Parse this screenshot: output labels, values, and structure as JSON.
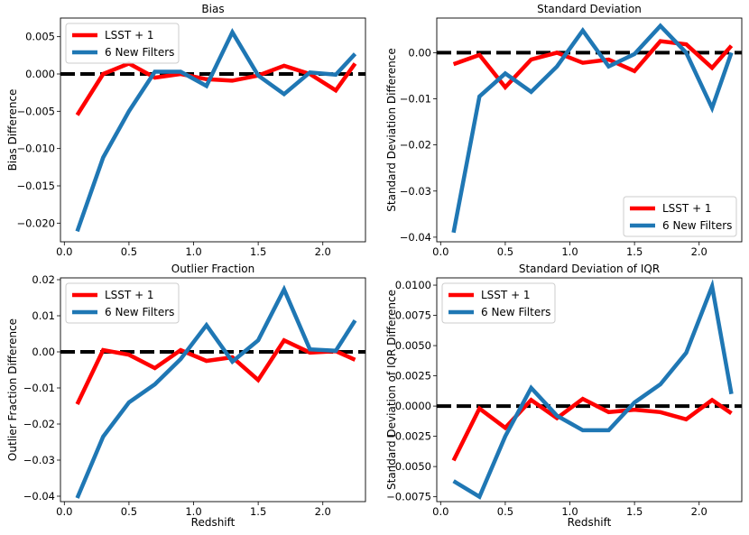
{
  "colors": {
    "lsst": "#ff0000",
    "new6": "#1f77b4",
    "zero": "#000000",
    "axes": "#000000"
  },
  "chart_data": [
    {
      "type": "line",
      "title": "Bias",
      "xlabel": "",
      "ylabel": "Bias Difference",
      "xlim": [
        -0.03,
        2.33
      ],
      "ylim": [
        -0.0225,
        0.0075
      ],
      "xticks": [
        0.0,
        0.5,
        1.0,
        1.5,
        2.0
      ],
      "xtick_labels": [
        "0.0",
        "0.5",
        "1.0",
        "1.5",
        "2.0"
      ],
      "yticks": [
        -0.02,
        -0.015,
        -0.01,
        -0.005,
        0.0,
        0.005
      ],
      "ytick_labels": [
        "−0.020",
        "−0.015",
        "−0.010",
        "−0.005",
        "0.000",
        "0.005"
      ],
      "legend_position": "upper-left",
      "x": [
        0.1,
        0.3,
        0.5,
        0.7,
        0.9,
        1.1,
        1.3,
        1.5,
        1.7,
        1.9,
        2.1,
        2.25
      ],
      "series": [
        {
          "name": "LSST + 1",
          "color_key": "lsst",
          "values": [
            -0.0055,
            0.0,
            0.0014,
            -0.0005,
            0.0,
            -0.0007,
            -0.0009,
            -0.0002,
            0.0011,
            0.0,
            -0.0022,
            0.0014
          ]
        },
        {
          "name": "6 New Filters",
          "color_key": "new6",
          "values": [
            -0.0211,
            -0.0112,
            -0.005,
            0.0003,
            0.0003,
            -0.0016,
            0.0056,
            -0.0002,
            -0.0027,
            0.0002,
            -0.0001,
            0.0027
          ]
        }
      ]
    },
    {
      "type": "line",
      "title": "Standard Deviation",
      "xlabel": "",
      "ylabel": "Standard Deviation Difference",
      "xlim": [
        -0.03,
        2.33
      ],
      "ylim": [
        -0.041,
        0.0075
      ],
      "xticks": [
        0.0,
        0.5,
        1.0,
        1.5,
        2.0
      ],
      "xtick_labels": [
        "0.0",
        "0.5",
        "1.0",
        "1.5",
        "2.0"
      ],
      "yticks": [
        -0.04,
        -0.03,
        -0.02,
        -0.01,
        0.0
      ],
      "ytick_labels": [
        "−0.04",
        "−0.03",
        "−0.02",
        "−0.01",
        "0.00"
      ],
      "legend_position": "lower-right",
      "x": [
        0.1,
        0.3,
        0.5,
        0.7,
        0.9,
        1.1,
        1.3,
        1.5,
        1.7,
        1.9,
        2.1,
        2.25
      ],
      "series": [
        {
          "name": "LSST + 1",
          "color_key": "lsst",
          "values": [
            -0.0025,
            -0.0005,
            -0.0075,
            -0.0015,
            0.0,
            -0.0022,
            -0.0015,
            -0.004,
            0.0025,
            0.0018,
            -0.0033,
            0.0015
          ]
        },
        {
          "name": "6 New Filters",
          "color_key": "new6",
          "values": [
            -0.039,
            -0.0095,
            -0.0045,
            -0.0085,
            -0.003,
            0.0048,
            -0.003,
            -0.0003,
            0.0058,
            0.0,
            -0.012,
            0.0
          ]
        }
      ]
    },
    {
      "type": "line",
      "title": "Outlier Fraction",
      "xlabel": "Redshift",
      "ylabel": "Outlier Fraction Difference",
      "xlim": [
        -0.03,
        2.33
      ],
      "ylim": [
        -0.0415,
        0.0205
      ],
      "xticks": [
        0.0,
        0.5,
        1.0,
        1.5,
        2.0
      ],
      "xtick_labels": [
        "0.0",
        "0.5",
        "1.0",
        "1.5",
        "2.0"
      ],
      "yticks": [
        -0.04,
        -0.03,
        -0.02,
        -0.01,
        0.0,
        0.01,
        0.02
      ],
      "ytick_labels": [
        "−0.04",
        "−0.03",
        "−0.02",
        "−0.01",
        "0.00",
        "0.01",
        "0.02"
      ],
      "legend_position": "upper-left",
      "x": [
        0.1,
        0.3,
        0.5,
        0.7,
        0.9,
        1.1,
        1.3,
        1.5,
        1.7,
        1.9,
        2.1,
        2.25
      ],
      "series": [
        {
          "name": "LSST + 1",
          "color_key": "lsst",
          "values": [
            -0.0145,
            0.0005,
            -0.0008,
            -0.0045,
            0.0005,
            -0.0025,
            -0.0015,
            -0.0078,
            0.0032,
            -0.0002,
            0.0002,
            -0.0022
          ]
        },
        {
          "name": "6 New Filters",
          "color_key": "new6",
          "values": [
            -0.0405,
            -0.0235,
            -0.014,
            -0.009,
            -0.002,
            0.0074,
            -0.0027,
            0.0032,
            0.0173,
            0.0007,
            0.0003,
            0.0087
          ]
        }
      ]
    },
    {
      "type": "line",
      "title": "Standard Deviation of IQR",
      "xlabel": "Redshift",
      "ylabel": "Standard Deviation of IQR Difference",
      "xlim": [
        -0.03,
        2.33
      ],
      "ylim": [
        -0.0079,
        0.0106
      ],
      "xticks": [
        0.0,
        0.5,
        1.0,
        1.5,
        2.0
      ],
      "xtick_labels": [
        "0.0",
        "0.5",
        "1.0",
        "1.5",
        "2.0"
      ],
      "yticks": [
        -0.0075,
        -0.005,
        -0.0025,
        0.0,
        0.0025,
        0.005,
        0.0075,
        0.01
      ],
      "ytick_labels": [
        "−0.0075",
        "−0.0050",
        "−0.0025",
        "0.0000",
        "0.0025",
        "0.0050",
        "0.0075",
        "0.0100"
      ],
      "legend_position": "upper-left",
      "x": [
        0.1,
        0.3,
        0.5,
        0.7,
        0.9,
        1.1,
        1.3,
        1.5,
        1.7,
        1.9,
        2.1,
        2.25
      ],
      "series": [
        {
          "name": "LSST + 1",
          "color_key": "lsst",
          "values": [
            -0.0045,
            -0.0002,
            -0.0018,
            0.0005,
            -0.001,
            0.0006,
            -0.0005,
            -0.0003,
            -0.0005,
            -0.0011,
            0.0005,
            -0.0006
          ]
        },
        {
          "name": "6 New Filters",
          "color_key": "new6",
          "values": [
            -0.0062,
            -0.0075,
            -0.0025,
            0.0015,
            -0.0008,
            -0.002,
            -0.002,
            0.0003,
            0.0018,
            0.0044,
            0.0099,
            0.001
          ]
        }
      ]
    }
  ]
}
